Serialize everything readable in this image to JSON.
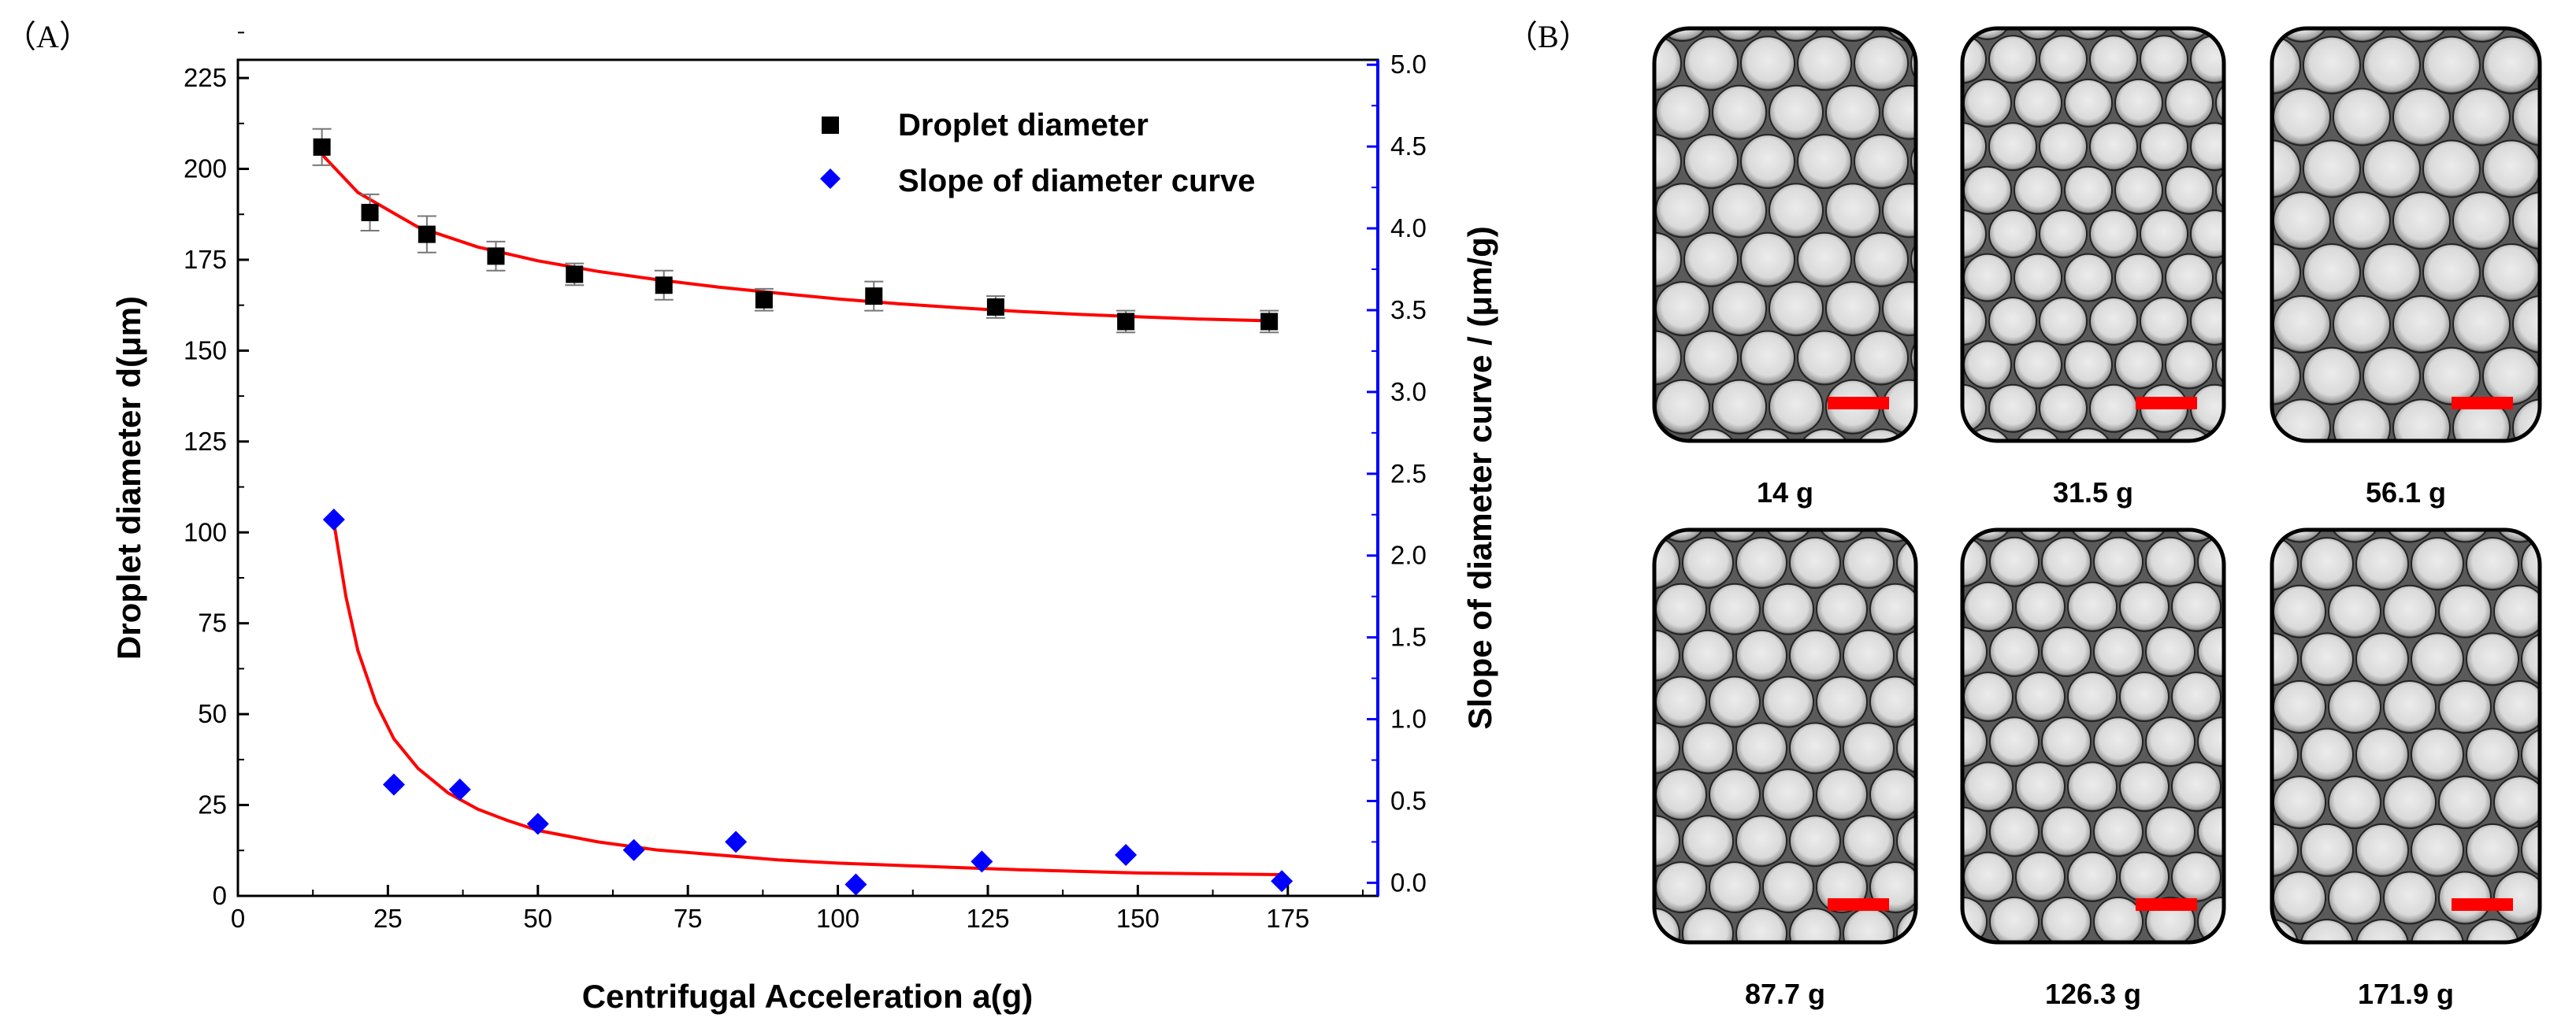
{
  "panel_a_label": "（A）",
  "panel_b_label": "（B）",
  "colors": {
    "diameter": "#000000",
    "slope": "#0000ff",
    "fit": "#ff0000",
    "right_axis": "#0000ff",
    "scale_bar": "#ff0000"
  },
  "chart_data": {
    "type": "scatter",
    "title": "",
    "xlabel": "Centrifugal Acceleration a(g)",
    "ylabel_left": "Droplet diameter d(μm)",
    "ylabel_right": "Slope of diameter curve / (μm/g)",
    "xlim": [
      0,
      190
    ],
    "ylim_left": [
      0,
      230
    ],
    "ylim_right": [
      -0.08,
      5.03
    ],
    "x_ticks": [
      "0",
      "25",
      "50",
      "75",
      "100",
      "125",
      "150",
      "175"
    ],
    "y_left_ticks": [
      "0",
      "25",
      "50",
      "75",
      "100",
      "125",
      "150",
      "175",
      "200",
      "225"
    ],
    "y_right_ticks": [
      "0.0",
      "0.5",
      "1.0",
      "1.5",
      "2.0",
      "2.5",
      "3.0",
      "3.5",
      "4.0",
      "4.5",
      "5.0"
    ],
    "legend": [
      "Droplet diameter",
      "Slope of diameter curve"
    ],
    "series": [
      {
        "name": "Droplet diameter",
        "axis": "left",
        "marker": "square",
        "x": [
          14,
          22,
          31.5,
          43,
          56.1,
          71,
          87.7,
          106,
          126.3,
          148,
          171.9
        ],
        "y": [
          206,
          188,
          182,
          176,
          171,
          168,
          164,
          165,
          162,
          158,
          158
        ],
        "error": [
          5,
          5,
          5,
          4,
          3,
          4,
          3,
          4,
          3,
          3,
          3
        ]
      },
      {
        "name": "Slope of diameter curve",
        "axis": "right",
        "marker": "diamond",
        "x": [
          16,
          26,
          37,
          50,
          66,
          83,
          103,
          124,
          148,
          174
        ],
        "y": [
          2.22,
          0.6,
          0.57,
          0.36,
          0.2,
          0.25,
          -0.01,
          0.13,
          0.17,
          0.01
        ]
      }
    ],
    "fits": [
      {
        "name": "diameter fit",
        "axis": "left",
        "x": [
          14,
          20,
          30,
          40,
          50,
          60,
          70,
          80,
          90,
          100,
          110,
          120,
          130,
          140,
          150,
          160,
          172
        ],
        "y": [
          204,
          193.5,
          184,
          178.5,
          174.7,
          171.8,
          169.5,
          167.5,
          165.8,
          164.2,
          162.9,
          161.8,
          160.8,
          160,
          159.3,
          158.7,
          158.2
        ]
      },
      {
        "name": "slope fit",
        "axis": "right",
        "x": [
          16,
          18,
          20,
          23,
          26,
          30,
          35,
          40,
          45,
          50,
          60,
          70,
          80,
          90,
          100,
          115,
          130,
          150,
          174
        ],
        "y": [
          2.2,
          1.75,
          1.42,
          1.1,
          0.88,
          0.7,
          0.55,
          0.45,
          0.38,
          0.32,
          0.25,
          0.2,
          0.17,
          0.14,
          0.12,
          0.1,
          0.08,
          0.06,
          0.05
        ]
      }
    ]
  },
  "micrographs": [
    {
      "caption": "14  g"
    },
    {
      "caption": "31.5 g"
    },
    {
      "caption": "56.1 g"
    },
    {
      "caption": "87.7 g"
    },
    {
      "caption": "126.3 g"
    },
    {
      "caption": "171.9 g"
    }
  ]
}
